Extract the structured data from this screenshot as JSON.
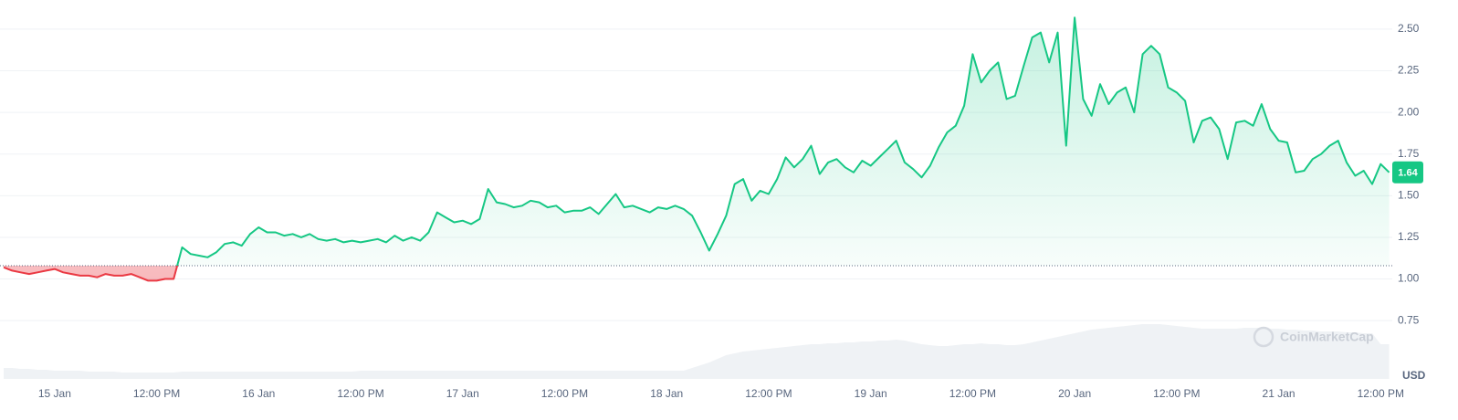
{
  "chart_data": {
    "type": "line",
    "categories": [
      null,
      null,
      null,
      null,
      null,
      null,
      "15 Jan",
      null,
      null,
      null,
      null,
      null,
      null,
      null,
      null,
      null,
      null,
      null,
      "12:00 PM",
      null,
      null,
      null,
      null,
      null,
      null,
      null,
      null,
      null,
      null,
      null,
      "16 Jan",
      null,
      null,
      null,
      null,
      null,
      null,
      null,
      null,
      null,
      null,
      null,
      "12:00 PM",
      null,
      null,
      null,
      null,
      null,
      null,
      null,
      null,
      null,
      null,
      null,
      "17 Jan",
      null,
      null,
      null,
      null,
      null,
      null,
      null,
      null,
      null,
      null,
      null,
      "12:00 PM",
      null,
      null,
      null,
      null,
      null,
      null,
      null,
      null,
      null,
      null,
      null,
      "18 Jan",
      null,
      null,
      null,
      null,
      null,
      null,
      null,
      null,
      null,
      null,
      null,
      "12:00 PM",
      null,
      null,
      null,
      null,
      null,
      null,
      null,
      null,
      null,
      null,
      null,
      "19 Jan",
      null,
      null,
      null,
      null,
      null,
      null,
      null,
      null,
      null,
      null,
      null,
      "12:00 PM",
      null,
      null,
      null,
      null,
      null,
      null,
      null,
      null,
      null,
      null,
      null,
      "20 Jan",
      null,
      null,
      null,
      null,
      null,
      null,
      null,
      null,
      null,
      null,
      null,
      "12:00 PM",
      null,
      null,
      null,
      null,
      null,
      null,
      null,
      null,
      null,
      null,
      null,
      "21 Jan",
      null,
      null,
      null,
      null,
      null,
      null,
      null,
      null,
      null,
      null,
      null,
      "12:00 PM",
      null
    ],
    "values": [
      1.07,
      1.05,
      1.04,
      1.03,
      1.04,
      1.05,
      1.06,
      1.04,
      1.03,
      1.02,
      1.02,
      1.01,
      1.03,
      1.02,
      1.02,
      1.03,
      1.01,
      0.99,
      0.99,
      1.0,
      1.0,
      1.19,
      1.15,
      1.14,
      1.13,
      1.16,
      1.21,
      1.22,
      1.2,
      1.27,
      1.31,
      1.28,
      1.28,
      1.26,
      1.27,
      1.25,
      1.27,
      1.24,
      1.23,
      1.24,
      1.22,
      1.23,
      1.22,
      1.23,
      1.24,
      1.22,
      1.26,
      1.23,
      1.25,
      1.23,
      1.28,
      1.4,
      1.37,
      1.34,
      1.35,
      1.33,
      1.36,
      1.54,
      1.46,
      1.45,
      1.43,
      1.44,
      1.47,
      1.46,
      1.43,
      1.44,
      1.4,
      1.41,
      1.41,
      1.43,
      1.39,
      1.45,
      1.51,
      1.43,
      1.44,
      1.42,
      1.4,
      1.43,
      1.42,
      1.44,
      1.42,
      1.38,
      1.28,
      1.17,
      1.27,
      1.38,
      1.57,
      1.6,
      1.47,
      1.53,
      1.51,
      1.6,
      1.73,
      1.67,
      1.72,
      1.8,
      1.63,
      1.7,
      1.72,
      1.67,
      1.64,
      1.71,
      1.68,
      1.73,
      1.78,
      1.83,
      1.7,
      1.66,
      1.61,
      1.68,
      1.79,
      1.88,
      1.92,
      2.04,
      2.35,
      2.18,
      2.25,
      2.3,
      2.08,
      2.1,
      2.28,
      2.45,
      2.48,
      2.3,
      2.48,
      1.8,
      2.57,
      2.08,
      1.98,
      2.17,
      2.05,
      2.12,
      2.15,
      2.0,
      2.35,
      2.4,
      2.35,
      2.15,
      2.12,
      2.07,
      1.82,
      1.95,
      1.97,
      1.9,
      1.72,
      1.94,
      1.95,
      1.92,
      2.05,
      1.9,
      1.83,
      1.82,
      1.64,
      1.65,
      1.72,
      1.75,
      1.8,
      1.83,
      1.7,
      1.62,
      1.65,
      1.57,
      1.69,
      1.64
    ],
    "volume": [
      12,
      12,
      11,
      11,
      10,
      10,
      9,
      9,
      9,
      9,
      8,
      8,
      8,
      8,
      7,
      7,
      7,
      7,
      7,
      7,
      7,
      8,
      8,
      8,
      8,
      8,
      8,
      8,
      8,
      8,
      8,
      8,
      8,
      8,
      8,
      8,
      8,
      8,
      8,
      8,
      8,
      8,
      9,
      9,
      9,
      9,
      9,
      9,
      9,
      9,
      9,
      9,
      9,
      9,
      9,
      9,
      9,
      9,
      9,
      9,
      9,
      9,
      9,
      9,
      9,
      9,
      9,
      9,
      9,
      9,
      9,
      9,
      9,
      9,
      9,
      9,
      9,
      9,
      9,
      9,
      9,
      12,
      15,
      18,
      22,
      26,
      28,
      30,
      31,
      32,
      33,
      34,
      35,
      36,
      37,
      38,
      38,
      39,
      39,
      40,
      40,
      41,
      41,
      42,
      42,
      43,
      42,
      40,
      38,
      37,
      36,
      36,
      37,
      38,
      38,
      39,
      38,
      38,
      37,
      37,
      38,
      40,
      42,
      44,
      46,
      48,
      50,
      52,
      54,
      55,
      56,
      57,
      58,
      59,
      60,
      60,
      60,
      59,
      58,
      57,
      56,
      55,
      55,
      55,
      55,
      55,
      56,
      56,
      56,
      55,
      55,
      54,
      54,
      53,
      53,
      52,
      52,
      52,
      51,
      51,
      50,
      50,
      38,
      38
    ],
    "baseline": 1.08,
    "current_price": 1.64,
    "up_color": "#16c784",
    "down_color": "#ea3943",
    "volume_color": "#eff2f5",
    "ylim": [
      0.4,
      2.675
    ],
    "yticks": [
      0.75,
      1.0,
      1.25,
      1.5,
      1.75,
      2.0,
      2.25,
      2.5
    ],
    "ytick_labels": [
      "0.75",
      "1.00",
      "1.25",
      "1.50",
      "1.75",
      "2.00",
      "2.25",
      "2.50"
    ],
    "currency": "USD",
    "watermark": "CoinMarketCap",
    "grid": true
  }
}
